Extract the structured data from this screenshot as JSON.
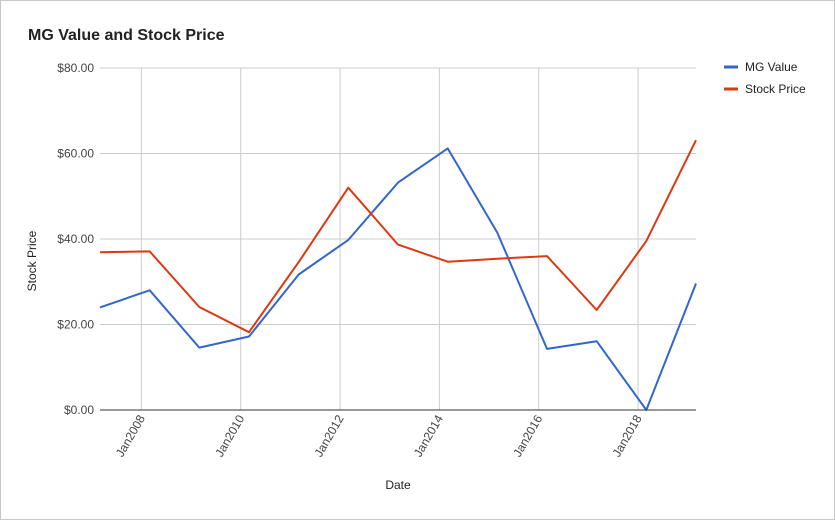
{
  "chart_data": {
    "type": "line",
    "title": "MG Value and Stock Price",
    "xlabel": "Date",
    "ylabel": "Stock Price",
    "x_ticks": [
      "Jan2008",
      "Jan2010",
      "Jan2012",
      "Jan2014",
      "Jan2016",
      "Jan2018"
    ],
    "y_ticks": [
      "$0.00",
      "$20.00",
      "$40.00",
      "$60.00",
      "$80.00"
    ],
    "ylim": [
      0,
      80
    ],
    "xlim": [
      "2007-03",
      "2019-03"
    ],
    "grid": true,
    "legend_position": "right",
    "series": [
      {
        "name": "MG Value",
        "color": "#3366cc",
        "x": [
          "2007-03",
          "2008-03",
          "2009-03",
          "2010-03",
          "2011-03",
          "2012-03",
          "2013-03",
          "2014-03",
          "2015-03",
          "2016-03",
          "2017-03",
          "2018-03",
          "2019-03"
        ],
        "values": [
          24.0,
          28.0,
          14.6,
          17.2,
          31.7,
          39.8,
          53.2,
          61.2,
          41.5,
          14.3,
          16.1,
          0.0,
          29.6
        ]
      },
      {
        "name": "Stock Price",
        "color": "#dc3912",
        "x": [
          "2007-03",
          "2008-03",
          "2009-03",
          "2010-03",
          "2011-03",
          "2012-03",
          "2013-03",
          "2014-03",
          "2015-03",
          "2016-03",
          "2017-03",
          "2018-03",
          "2019-03"
        ],
        "values": [
          36.9,
          37.1,
          24.1,
          18.2,
          34.6,
          52.0,
          38.7,
          34.7,
          35.4,
          36.0,
          23.4,
          39.5,
          63.1
        ]
      }
    ]
  }
}
